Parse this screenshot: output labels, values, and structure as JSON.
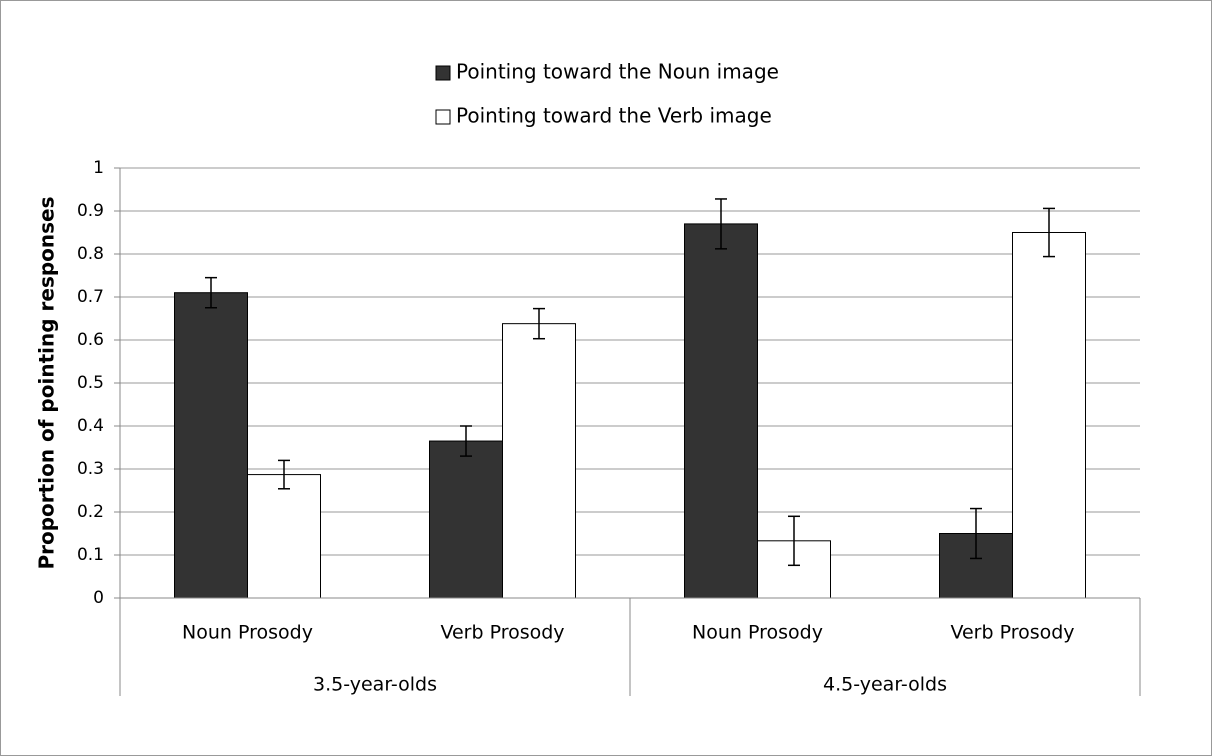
{
  "chart_data": {
    "type": "bar",
    "y_label": "Proportion of pointing responses",
    "categories": [
      "Noun Prosody",
      "Verb Prosody",
      "Noun Prosody",
      "Verb Prosody"
    ],
    "groups": [
      "3.5-year-olds",
      "4.5-year-olds"
    ],
    "series": [
      {
        "name": "Pointing toward the Noun image",
        "color": "#333333",
        "values": [
          0.71,
          0.365,
          0.87,
          0.15
        ],
        "errors": [
          0.035,
          0.035,
          0.058,
          0.058
        ]
      },
      {
        "name": "Pointing toward the Verb image",
        "color": "#ffffff",
        "values": [
          0.287,
          0.638,
          0.133,
          0.85
        ],
        "errors": [
          0.033,
          0.035,
          0.057,
          0.056
        ]
      }
    ],
    "ylim": [
      0,
      1
    ],
    "yticks": [
      0,
      0.1,
      0.2,
      0.3,
      0.4,
      0.5,
      0.6,
      0.7,
      0.8,
      0.9,
      1
    ],
    "grid": true
  }
}
